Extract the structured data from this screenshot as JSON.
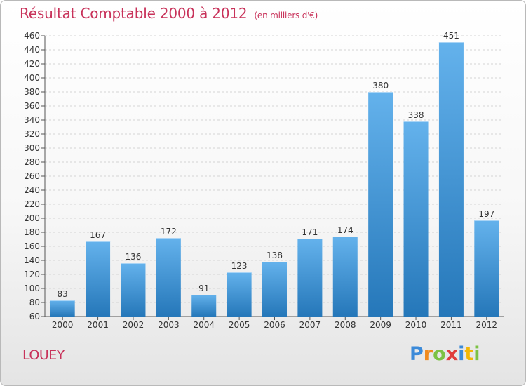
{
  "header": {
    "title": "Résultat Comptable 2000 à 2012",
    "subtitle": "(en milliers d'€)"
  },
  "footer": {
    "place": "LOUEY"
  },
  "logo": {
    "letters": [
      "P",
      "r",
      "o",
      "x",
      "i",
      "t",
      "i"
    ],
    "colors": [
      "#3b8ad9",
      "#f08a1e",
      "#7cc243",
      "#e03c3c",
      "#3b8ad9",
      "#f2b705",
      "#7cc243"
    ]
  },
  "colors": {
    "bar_top": "#64b2ec",
    "bar_bottom": "#2577b9",
    "title": "#c8325a"
  },
  "chart_data": {
    "type": "bar",
    "title": "Résultat Comptable 2000 à 2012",
    "subtitle": "(en milliers d'€)",
    "categories": [
      "2000",
      "2001",
      "2002",
      "2003",
      "2004",
      "2005",
      "2006",
      "2007",
      "2008",
      "2009",
      "2010",
      "2011",
      "2012"
    ],
    "values": [
      83,
      167,
      136,
      172,
      91,
      123,
      138,
      171,
      174,
      380,
      338,
      451,
      197
    ],
    "yticks": [
      60,
      80,
      100,
      120,
      140,
      160,
      180,
      200,
      220,
      240,
      260,
      280,
      300,
      320,
      340,
      360,
      380,
      400,
      420,
      440,
      460
    ],
    "ylim": [
      60,
      460
    ],
    "grid": true,
    "xlabel": "",
    "ylabel": ""
  }
}
